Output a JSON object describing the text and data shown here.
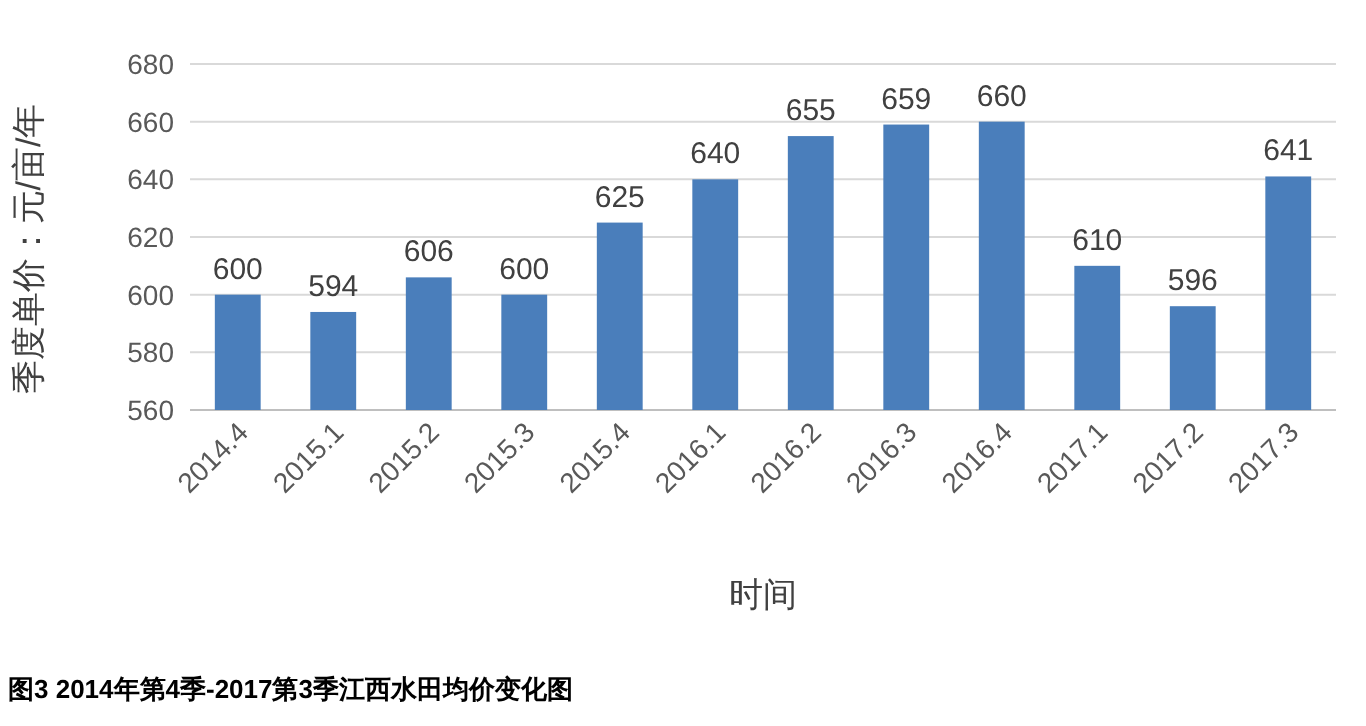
{
  "chart_data": {
    "type": "bar",
    "categories": [
      "2014.4",
      "2015.1",
      "2015.2",
      "2015.3",
      "2015.4",
      "2016.1",
      "2016.2",
      "2016.3",
      "2016.4",
      "2017.1",
      "2017.2",
      "2017.3"
    ],
    "values": [
      600,
      594,
      606,
      600,
      625,
      640,
      655,
      659,
      660,
      610,
      596,
      641
    ],
    "color": "#4a7ebb",
    "ylim": [
      560,
      680
    ],
    "yticks": [
      560,
      580,
      600,
      620,
      640,
      660,
      680
    ],
    "grid": "y",
    "data_labels": true,
    "xlabel": "时间",
    "ylabel": "季度单价：元/亩/年",
    "annotations": [
      "图3 2014年第4季-2017第3季江西水田均价变化图"
    ]
  }
}
